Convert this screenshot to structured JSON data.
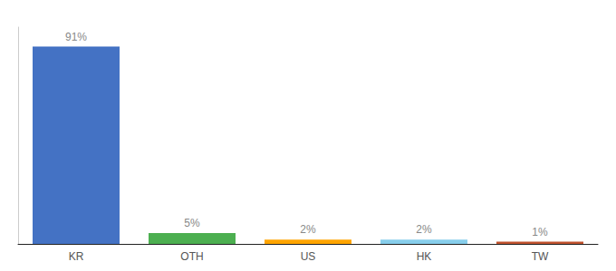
{
  "chart_data": {
    "type": "bar",
    "categories": [
      "KR",
      "OTH",
      "US",
      "HK",
      "TW"
    ],
    "values": [
      91,
      5,
      2,
      2,
      1
    ],
    "value_labels": [
      "91%",
      "5%",
      "2%",
      "2%",
      "1%"
    ],
    "colors": [
      "#4472C4",
      "#4CAF50",
      "#FFA500",
      "#87CEEB",
      "#C0522D"
    ],
    "ylim": [
      0,
      100
    ],
    "grid": false,
    "data_labels": true,
    "tick_labels": "x"
  }
}
